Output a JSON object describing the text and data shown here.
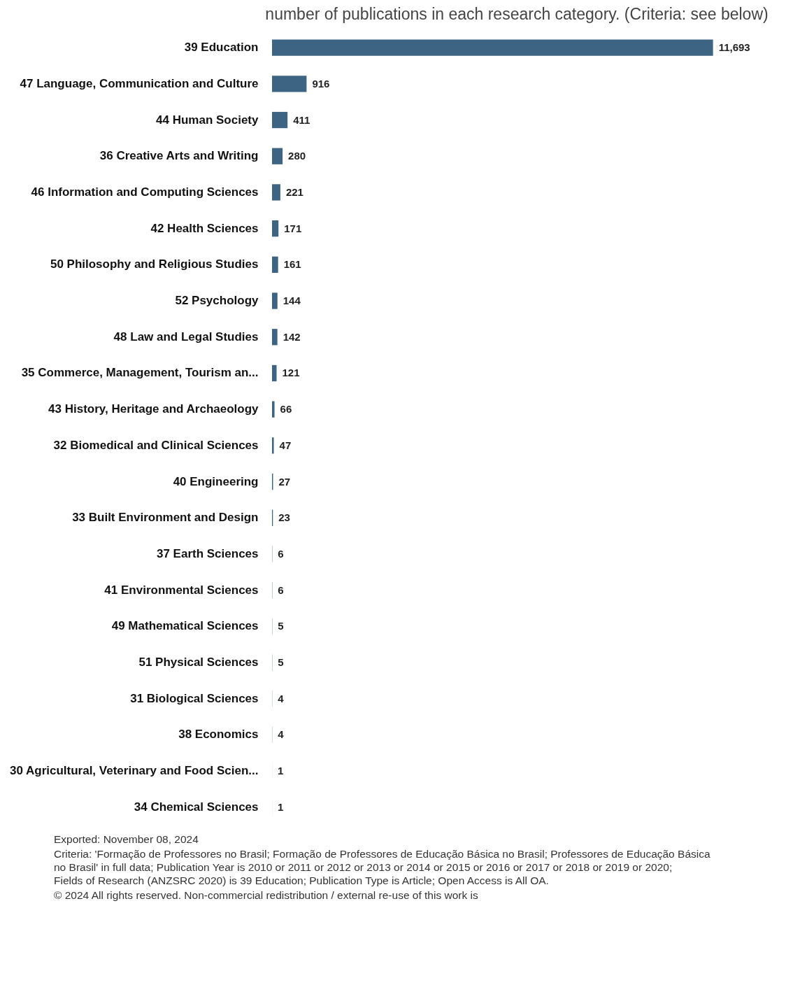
{
  "chart_data": {
    "type": "bar",
    "orientation": "horizontal",
    "title": "number of publications in each research category. (Criteria: see below)",
    "categories": [
      "39 Education",
      "47 Language, Communication and Culture",
      "44 Human Society",
      "36 Creative Arts and Writing",
      "46 Information and Computing Sciences",
      "42 Health Sciences",
      "50 Philosophy and Religious Studies",
      "52 Psychology",
      "48 Law and Legal Studies",
      "35 Commerce, Management, Tourism an...",
      "43 History, Heritage and Archaeology",
      "32 Biomedical and Clinical Sciences",
      "40 Engineering",
      "33 Built Environment and Design",
      "37 Earth Sciences",
      "41 Environmental Sciences",
      "49 Mathematical Sciences",
      "51 Physical Sciences",
      "31 Biological Sciences",
      "38 Economics",
      "30 Agricultural, Veterinary and Food Scien...",
      "34 Chemical Sciences"
    ],
    "values": [
      11693,
      916,
      411,
      280,
      221,
      171,
      161,
      144,
      142,
      121,
      66,
      47,
      27,
      23,
      6,
      6,
      5,
      5,
      4,
      4,
      1,
      1
    ],
    "color": "#3d6583",
    "value_labels": [
      "11,693",
      "916",
      "411",
      "280",
      "221",
      "171",
      "161",
      "144",
      "142",
      "121",
      "66",
      "47",
      "27",
      "23",
      "6",
      "6",
      "5",
      "5",
      "4",
      "4",
      "1",
      "1"
    ],
    "grid": false,
    "annotations": [
      "Exported: November 08, 2024",
      "Criteria: 'Formação de Professores no Brasil; Formação de Professores de Educação Básica no Brasil; Professores de Educação Básica no Brasil' in full data; Publication Year is 2010 or 2011 or 2012 or 2013 or 2014 or 2015 or 2016 or 2017 or 2018 or 2019 or 2020; Fields of Research (ANZSRC 2020) is 39 Education; Publication Type is Article; Open Access is All OA.",
      "© 2024 All rights reserved. Non-commercial redistribution / external re-use of this work is"
    ]
  }
}
